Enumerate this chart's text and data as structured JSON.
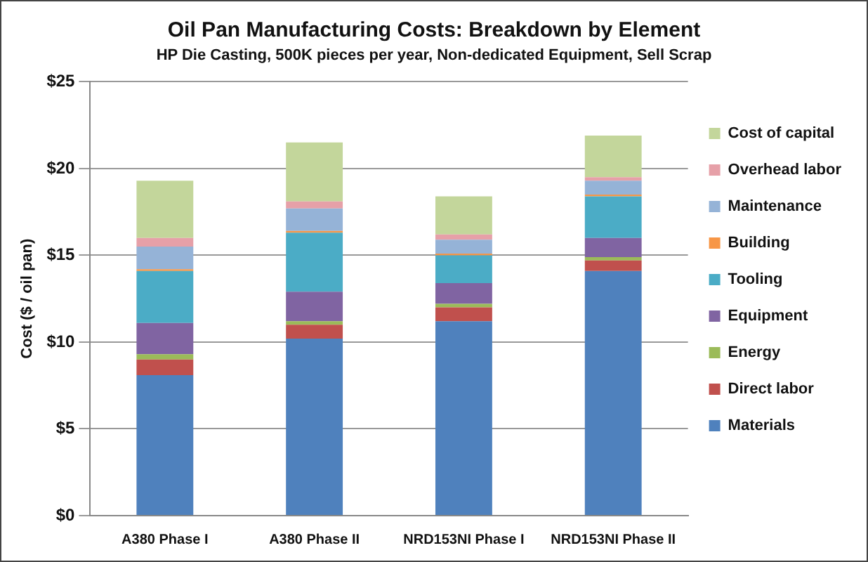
{
  "chart_data": {
    "type": "bar",
    "title": "Oil Pan Manufacturing Costs: Breakdown by Element",
    "subtitle": "HP Die Casting, 500K pieces per year, Non-dedicated Equipment, Sell Scrap",
    "ylabel": "Cost ($ / oil pan)",
    "categories": [
      "A380 Phase I",
      "A380 Phase II",
      "NRD153NI Phase I",
      "NRD153NI Phase II"
    ],
    "stacked": true,
    "legend": "right",
    "grid": "y",
    "ylim": [
      0,
      25
    ],
    "yticks": [
      {
        "value": 0,
        "label": "$0"
      },
      {
        "value": 5,
        "label": "$5"
      },
      {
        "value": 10,
        "label": "$10"
      },
      {
        "value": 15,
        "label": "$15"
      },
      {
        "value": 20,
        "label": "$20"
      },
      {
        "value": 25,
        "label": "$25"
      }
    ],
    "series": [
      {
        "name": "Materials",
        "color": "#4f81bd",
        "values": [
          8.1,
          10.2,
          11.2,
          14.1
        ]
      },
      {
        "name": "Direct labor",
        "color": "#c0504d",
        "values": [
          0.9,
          0.8,
          0.8,
          0.6
        ]
      },
      {
        "name": "Energy",
        "color": "#9bbb59",
        "values": [
          0.3,
          0.2,
          0.2,
          0.2
        ]
      },
      {
        "name": "Equipment",
        "color": "#8064a2",
        "values": [
          1.8,
          1.7,
          1.2,
          1.1
        ]
      },
      {
        "name": "Tooling",
        "color": "#4bacc6",
        "values": [
          3.0,
          3.4,
          1.6,
          2.4
        ]
      },
      {
        "name": "Building",
        "color": "#f79646",
        "values": [
          0.1,
          0.1,
          0.1,
          0.1
        ]
      },
      {
        "name": "Maintenance",
        "color": "#95b3d7",
        "values": [
          1.3,
          1.3,
          0.8,
          0.8
        ]
      },
      {
        "name": "Overhead labor",
        "color": "#e6a0a8",
        "values": [
          0.5,
          0.4,
          0.3,
          0.2
        ]
      },
      {
        "name": "Cost of capital",
        "color": "#c3d69b",
        "values": [
          3.3,
          3.4,
          2.2,
          2.4
        ]
      }
    ]
  }
}
